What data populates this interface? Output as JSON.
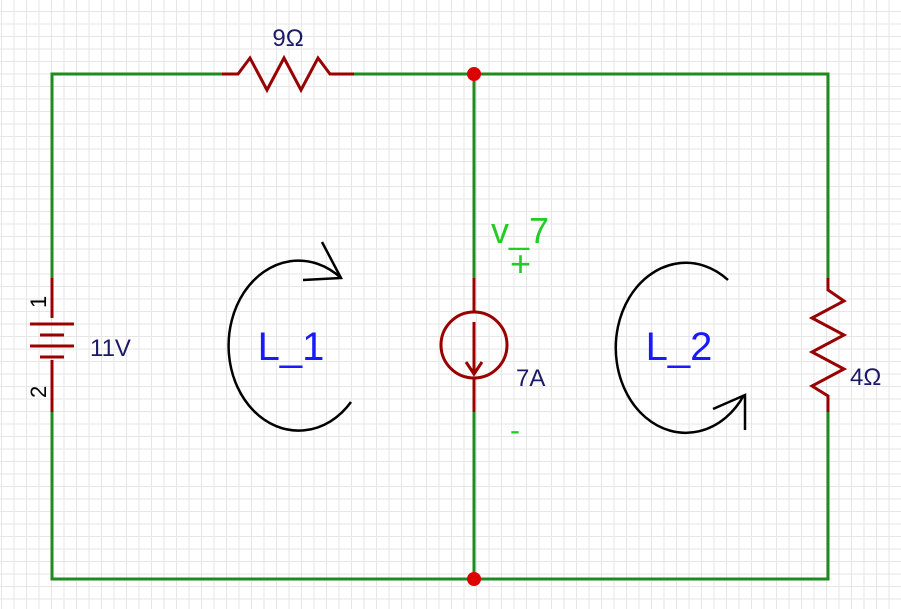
{
  "components": {
    "resistor_top": {
      "label": "9Ω"
    },
    "resistor_right": {
      "label": "4Ω"
    },
    "battery": {
      "label": "11V",
      "pin_top": "1",
      "pin_bottom": "2"
    },
    "current_source": {
      "label": "7A"
    }
  },
  "voltage_probe": {
    "name": "v_7",
    "plus": "+",
    "minus": "-"
  },
  "loops": [
    {
      "label": "L_1",
      "direction": "clockwise"
    },
    {
      "label": "L_2",
      "direction": "counterclockwise"
    }
  ],
  "colors": {
    "wire": "#1f8a1f",
    "component": "#990000",
    "junction": "#dd0000",
    "loop_label": "#1a1aff",
    "component_label": "#1a1a66",
    "probe": "#22cc22"
  }
}
